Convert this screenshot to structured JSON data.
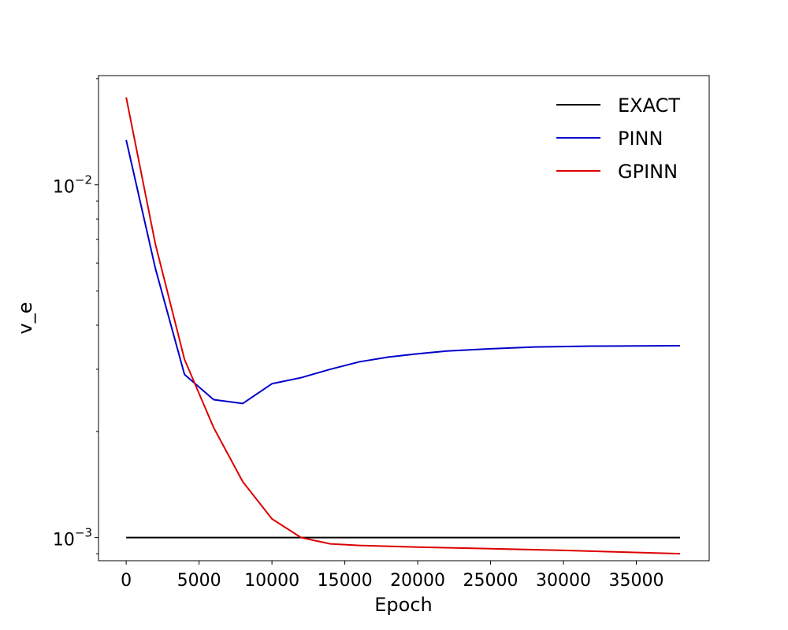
{
  "chart_data": {
    "type": "line",
    "title": "",
    "xlabel": "Epoch",
    "ylabel": "v_e",
    "xlim": [
      -1900,
      40000
    ],
    "ylim": [
      0.00086,
      0.0204
    ],
    "yscale": "log",
    "grid": false,
    "legend": {
      "position": "top-right",
      "frame": false
    },
    "xticks": [
      {
        "value": 0,
        "label": "0"
      },
      {
        "value": 5000,
        "label": "5000"
      },
      {
        "value": 10000,
        "label": "10000"
      },
      {
        "value": 15000,
        "label": "15000"
      },
      {
        "value": 20000,
        "label": "20000"
      },
      {
        "value": 25000,
        "label": "25000"
      },
      {
        "value": 30000,
        "label": "30000"
      },
      {
        "value": 35000,
        "label": "35000"
      }
    ],
    "yticks_major": [
      {
        "value": 0.001,
        "base": "10",
        "exp": "−3"
      },
      {
        "value": 0.01,
        "base": "10",
        "exp": "−2"
      }
    ],
    "yticks_minor": [
      0.0009,
      0.002,
      0.003,
      0.004,
      0.005,
      0.006,
      0.007,
      0.008,
      0.009,
      0.02
    ],
    "series": [
      {
        "name": "EXACT",
        "color": "#000000",
        "x": [
          0,
          38000
        ],
        "y": [
          0.001,
          0.001
        ]
      },
      {
        "name": "PINN",
        "color": "#0000cc",
        "x": [
          0,
          2000,
          4000,
          6000,
          8000,
          10000,
          12000,
          14000,
          16000,
          18000,
          20000,
          22000,
          25000,
          28000,
          32000,
          38000
        ],
        "y": [
          0.0134,
          0.0058,
          0.0029,
          0.00246,
          0.0024,
          0.00273,
          0.00284,
          0.003,
          0.00315,
          0.00325,
          0.00332,
          0.00338,
          0.00343,
          0.00347,
          0.00349,
          0.0035
        ]
      },
      {
        "name": "GPINN",
        "color": "#dd0000",
        "x": [
          0,
          2000,
          4000,
          6000,
          8000,
          10000,
          12000,
          14000,
          16000,
          20000,
          25000,
          30000,
          38000
        ],
        "y": [
          0.0177,
          0.0068,
          0.0032,
          0.00205,
          0.00144,
          0.00113,
          0.001,
          0.00096,
          0.00095,
          0.00094,
          0.00093,
          0.00092,
          0.0009
        ]
      }
    ]
  }
}
